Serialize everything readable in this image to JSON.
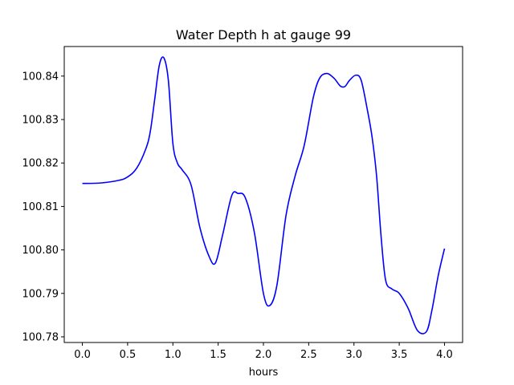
{
  "chart_data": {
    "type": "line",
    "title": "Water Depth h at gauge 99",
    "xlabel": "hours",
    "ylabel": "",
    "xlim": [
      -0.2,
      4.2
    ],
    "ylim": [
      100.7787,
      100.8468
    ],
    "x_ticks": [
      0.0,
      0.5,
      1.0,
      1.5,
      2.0,
      2.5,
      3.0,
      3.5,
      4.0
    ],
    "x_tick_labels": [
      "0.0",
      "0.5",
      "1.0",
      "1.5",
      "2.0",
      "2.5",
      "3.0",
      "3.5",
      "4.0"
    ],
    "y_ticks": [
      100.78,
      100.79,
      100.8,
      100.81,
      100.82,
      100.83,
      100.84
    ],
    "y_tick_labels": [
      "100.78",
      "100.79",
      "100.80",
      "100.81",
      "100.82",
      "100.83",
      "100.84"
    ],
    "grid": false,
    "series": [
      {
        "color": "#0000ff",
        "x": [
          0.0,
          0.2,
          0.4,
          0.5,
          0.6,
          0.7,
          0.75,
          0.8,
          0.85,
          0.9,
          0.95,
          1.0,
          1.05,
          1.1,
          1.2,
          1.3,
          1.4,
          1.47,
          1.55,
          1.65,
          1.72,
          1.8,
          1.9,
          2.0,
          2.07,
          2.15,
          2.25,
          2.35,
          2.45,
          2.55,
          2.62,
          2.7,
          2.78,
          2.85,
          2.9,
          2.95,
          3.02,
          3.08,
          3.15,
          3.2,
          3.25,
          3.3,
          3.35,
          3.42,
          3.5,
          3.6,
          3.7,
          3.8,
          3.86,
          3.93,
          4.0
        ],
        "y": [
          100.8153,
          100.8154,
          100.816,
          100.8168,
          100.8188,
          100.8232,
          100.8272,
          100.8348,
          100.8425,
          100.8442,
          100.839,
          100.8245,
          100.82,
          100.8185,
          100.815,
          100.805,
          100.7985,
          100.797,
          100.8035,
          100.8125,
          100.813,
          100.812,
          100.804,
          100.79,
          100.7872,
          100.792,
          100.808,
          100.817,
          100.824,
          100.835,
          100.8395,
          100.8406,
          100.8395,
          100.8377,
          100.8376,
          100.839,
          100.8402,
          100.839,
          100.832,
          100.826,
          100.817,
          100.803,
          100.793,
          100.791,
          100.79,
          100.7865,
          100.7815,
          100.7812,
          100.786,
          100.794,
          100.8003
        ]
      }
    ]
  }
}
